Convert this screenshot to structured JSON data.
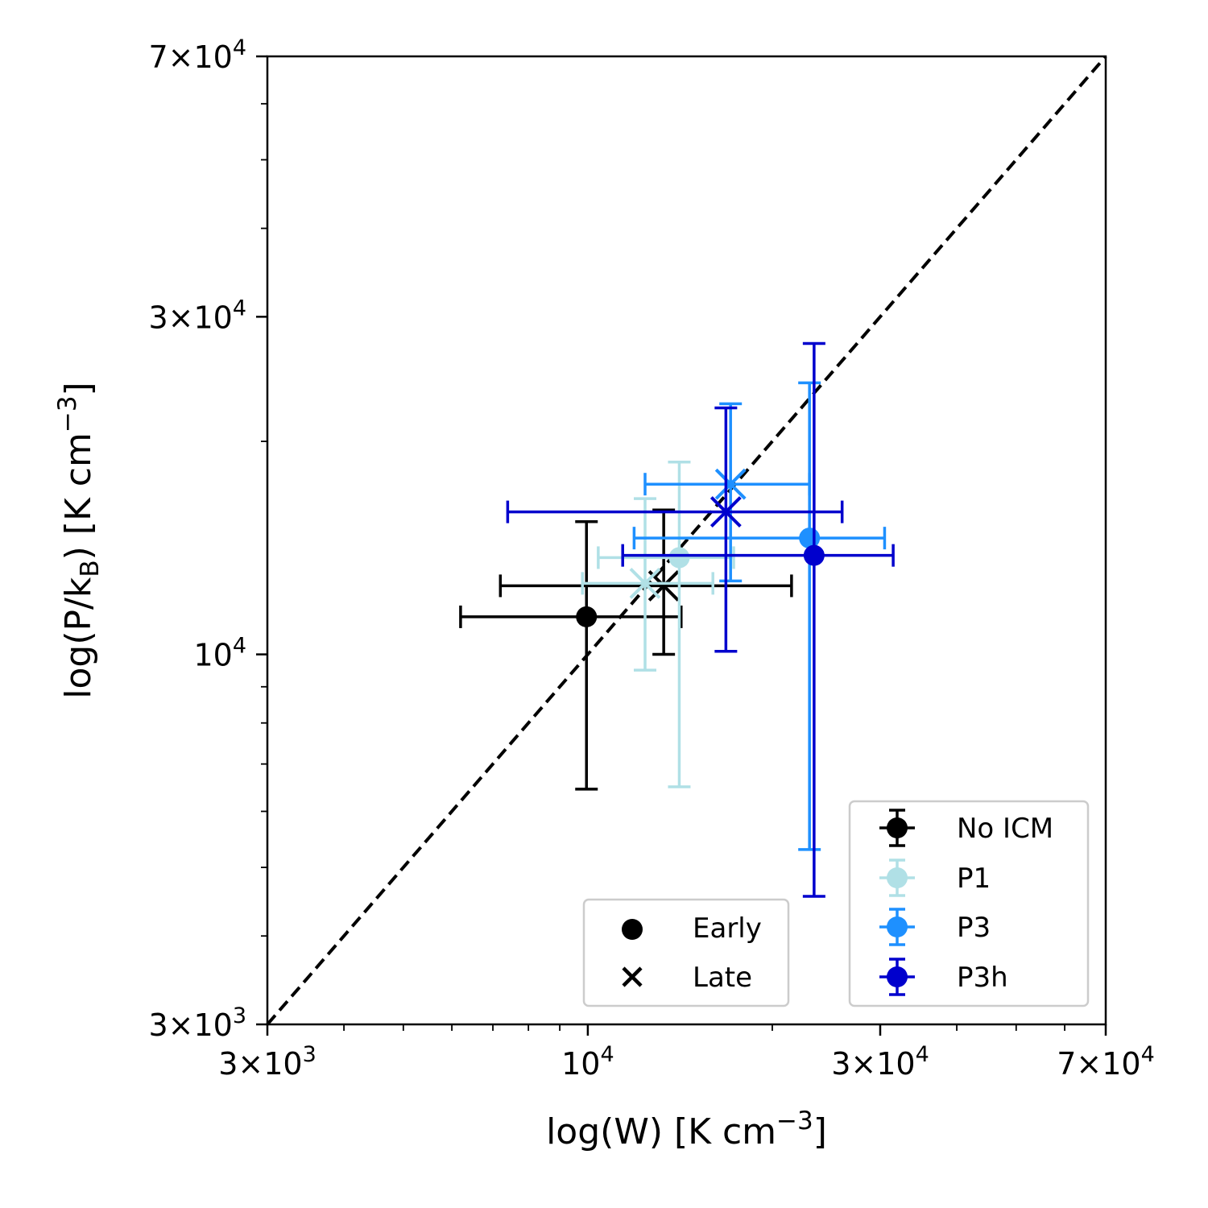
{
  "chart_data": {
    "type": "scatter",
    "xscale": "log",
    "yscale": "log",
    "xlim": [
      3000,
      70000
    ],
    "ylim": [
      3000,
      70000
    ],
    "xlabel": {
      "main": "log(W) [K cm",
      "sup": "−3",
      "close": "]"
    },
    "ylabel": {
      "main": "log(P/k",
      "sub": "B",
      "mid": ") [K cm",
      "sup": "−3",
      "close": "]"
    },
    "x_major_ticks": [
      {
        "value": 3000,
        "mant": "3×10",
        "exp": "3"
      },
      {
        "value": 10000,
        "mant": "10",
        "exp": "4"
      },
      {
        "value": 30000,
        "mant": "3×10",
        "exp": "4"
      },
      {
        "value": 70000,
        "mant": "7×10",
        "exp": "4"
      }
    ],
    "y_major_ticks": [
      {
        "value": 3000,
        "mant": "3×10",
        "exp": "3"
      },
      {
        "value": 10000,
        "mant": "10",
        "exp": "4"
      },
      {
        "value": 30000,
        "mant": "3×10",
        "exp": "4"
      },
      {
        "value": 70000,
        "mant": "7×10",
        "exp": "4"
      }
    ],
    "minor_ticks": [
      4000,
      5000,
      6000,
      7000,
      8000,
      9000,
      20000,
      40000,
      50000,
      60000
    ],
    "reference_line": {
      "style": "dashed",
      "color": "#000000",
      "from": [
        3000,
        3000
      ],
      "to": [
        70000,
        70000
      ]
    },
    "series": [
      {
        "name": "No ICM",
        "color": "#000000",
        "points": [
          {
            "phase": "Early",
            "x": 9950,
            "y": 11300,
            "xerr": [
              6200,
              14200
            ],
            "yerr": [
              6450,
              15400
            ]
          },
          {
            "phase": "Late",
            "x": 13300,
            "y": 12500,
            "xerr": [
              7200,
              21500
            ],
            "yerr": [
              10000,
              16000
            ]
          }
        ]
      },
      {
        "name": "P1",
        "color": "#b0e0e6",
        "points": [
          {
            "phase": "Early",
            "x": 14100,
            "y": 13700,
            "xerr": [
              10400,
              17300
            ],
            "yerr": [
              6500,
              18700
            ]
          },
          {
            "phase": "Late",
            "x": 12400,
            "y": 12600,
            "xerr": [
              9800,
              16000
            ],
            "yerr": [
              9500,
              16600
            ]
          }
        ]
      },
      {
        "name": "P3",
        "color": "#1e90ff",
        "points": [
          {
            "phase": "Early",
            "x": 23000,
            "y": 14600,
            "xerr": [
              11900,
              30500
            ],
            "yerr": [
              5300,
              24200
            ]
          },
          {
            "phase": "Late",
            "x": 17100,
            "y": 17400,
            "xerr": [
              12400,
              23000
            ],
            "yerr": [
              12700,
              22600
            ]
          }
        ]
      },
      {
        "name": "P3h",
        "color": "#0000cd",
        "points": [
          {
            "phase": "Early",
            "x": 23400,
            "y": 13800,
            "xerr": [
              11400,
              31500
            ],
            "yerr": [
              4550,
              27500
            ]
          },
          {
            "phase": "Late",
            "x": 16800,
            "y": 15900,
            "xerr": [
              7400,
              26000
            ],
            "yerr": [
              10100,
              22300
            ]
          }
        ]
      }
    ],
    "legends": [
      {
        "location": "lower-center",
        "entries": [
          {
            "marker": "circle",
            "label": "Early"
          },
          {
            "marker": "x",
            "label": "Late"
          }
        ]
      },
      {
        "location": "lower-right",
        "entries": [
          {
            "series": "No ICM",
            "label": "No ICM"
          },
          {
            "series": "P1",
            "label": "P1"
          },
          {
            "series": "P3",
            "label": "P3"
          },
          {
            "series": "P3h",
            "label": "P3h"
          }
        ]
      }
    ]
  }
}
